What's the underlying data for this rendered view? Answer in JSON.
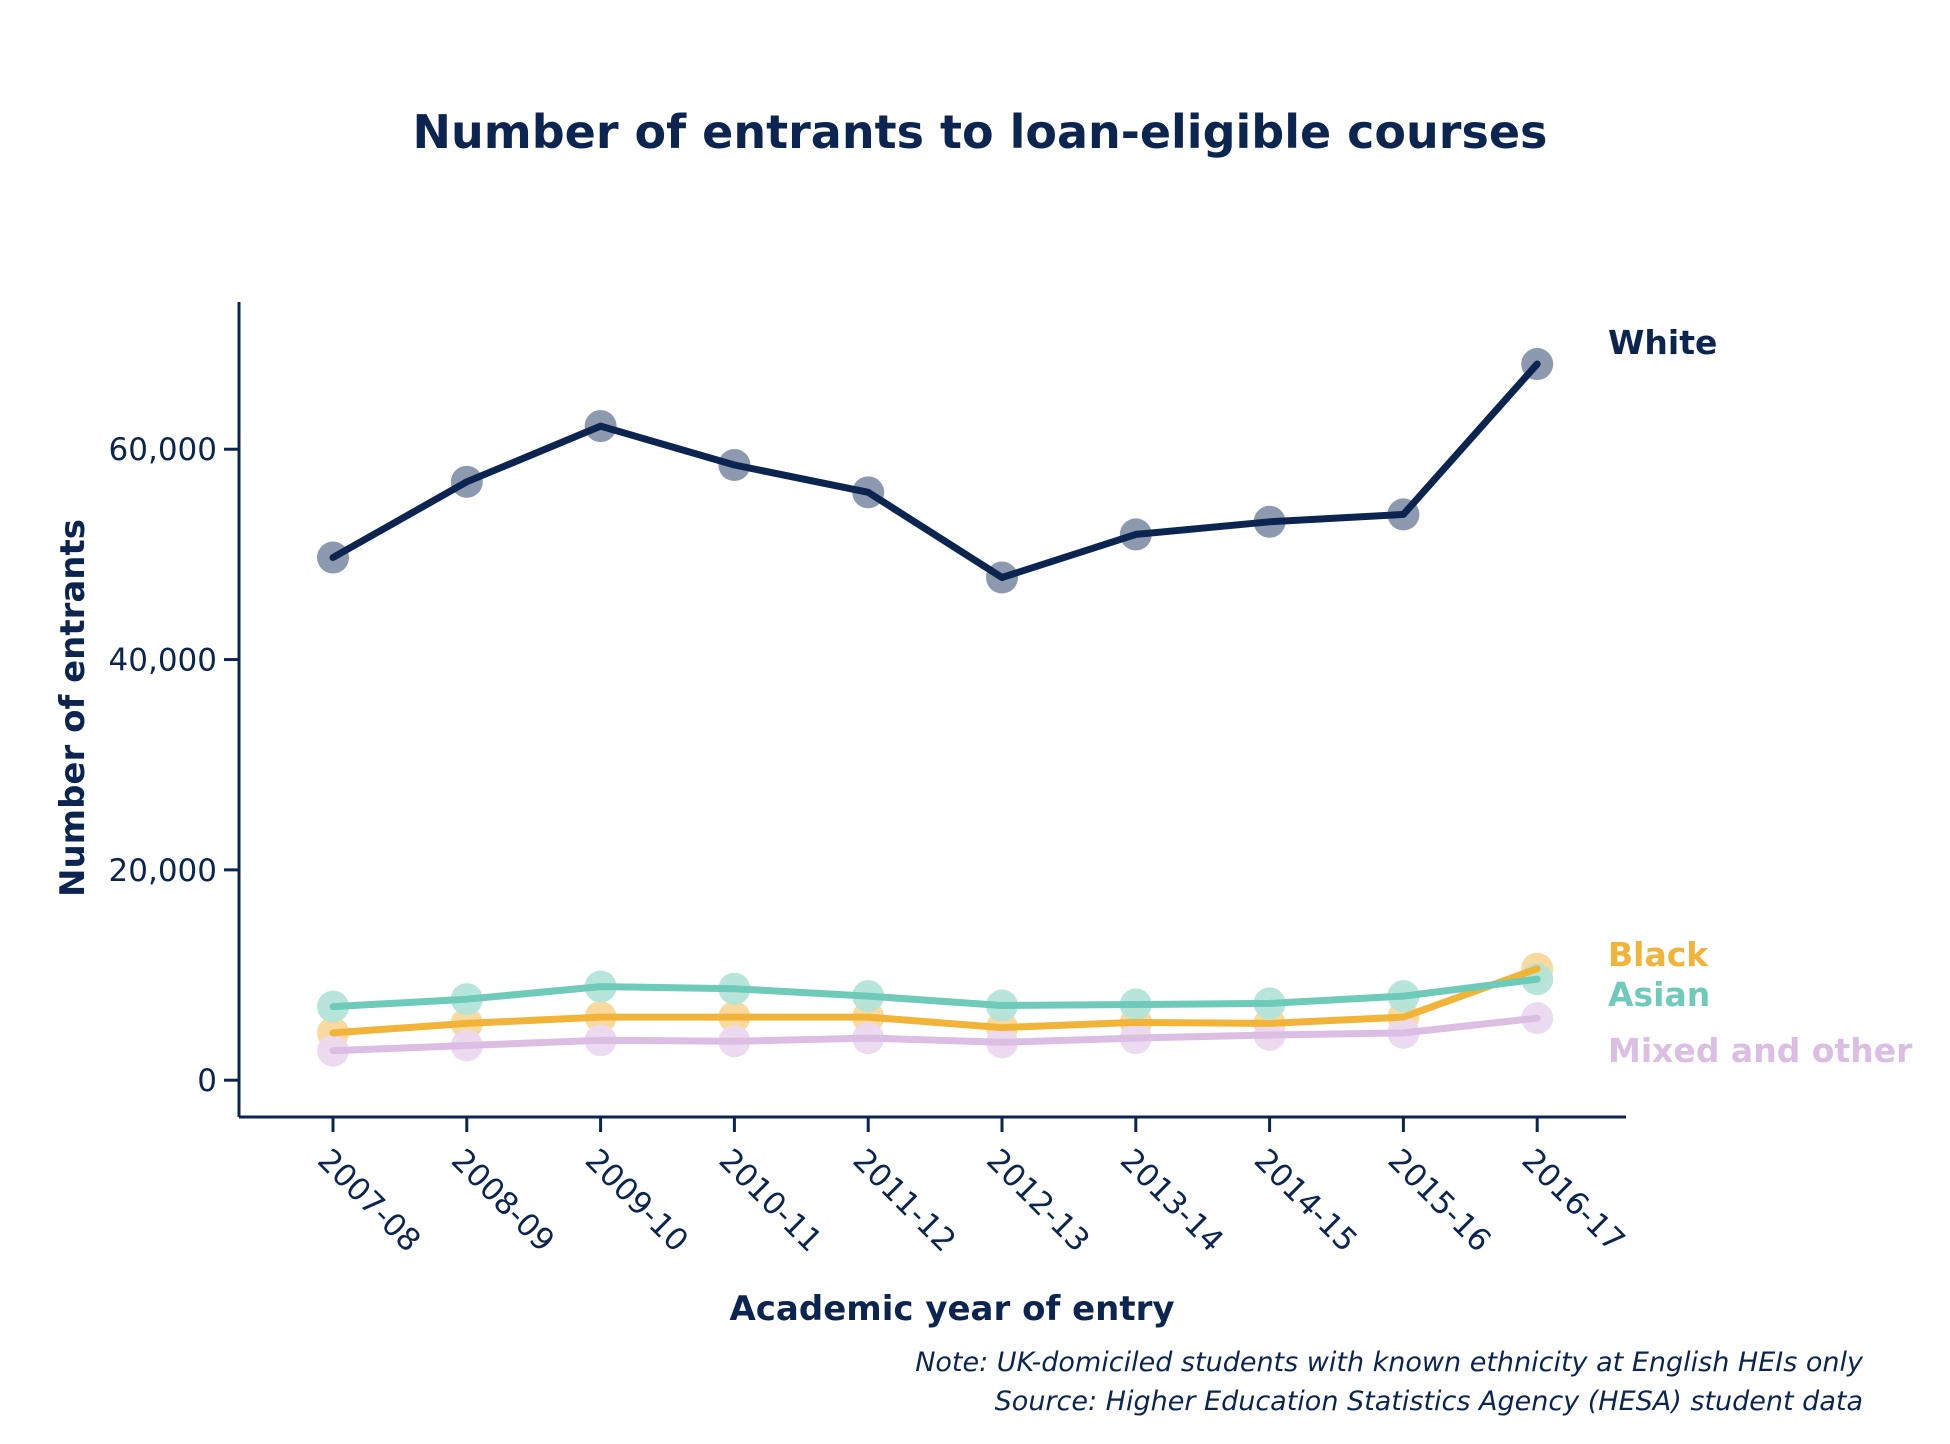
{
  "chart_data": {
    "type": "line",
    "title": "Number of entrants to loan-eligible courses",
    "xlabel": "Academic year of entry",
    "ylabel": "Number of entrants",
    "categories": [
      "2007-08",
      "2008-09",
      "2009-10",
      "2010-11",
      "2011-12",
      "2012-13",
      "2013-14",
      "2014-15",
      "2015-16",
      "2016-17"
    ],
    "ylim": [
      -3500,
      74000
    ],
    "yticks": [
      0,
      20000,
      40000,
      60000
    ],
    "ytick_labels": [
      "0",
      "20,000",
      "40,000",
      "60,000"
    ],
    "grid": false,
    "legend": "direct labels at right end of lines",
    "series": [
      {
        "name": "White",
        "color": "#0b2550",
        "marker_color": "#8793ab",
        "values": [
          49700,
          56900,
          62200,
          58500,
          55900,
          47800,
          51900,
          53100,
          53800,
          68100
        ]
      },
      {
        "name": "Black",
        "color": "#f2b438",
        "marker_color": "#f8d89a",
        "values": [
          4500,
          5400,
          6000,
          6000,
          6000,
          5000,
          5500,
          5400,
          6000,
          10600
        ]
      },
      {
        "name": "Asian",
        "color": "#6ecbb9",
        "marker_color": "#b3e4da",
        "values": [
          7000,
          7700,
          8900,
          8700,
          8000,
          7100,
          7200,
          7300,
          8000,
          9600
        ]
      },
      {
        "name": "Mixed and other",
        "color": "#dcbde3",
        "marker_color": "#ebd9ef",
        "values": [
          2800,
          3300,
          3800,
          3700,
          4000,
          3600,
          4000,
          4300,
          4500,
          5900
        ]
      }
    ],
    "notes": [
      "Note: UK-domiciled students with known ethnicity at English HEIs only",
      "Source: Higher Education Statistics Agency (HESA) student data"
    ]
  }
}
